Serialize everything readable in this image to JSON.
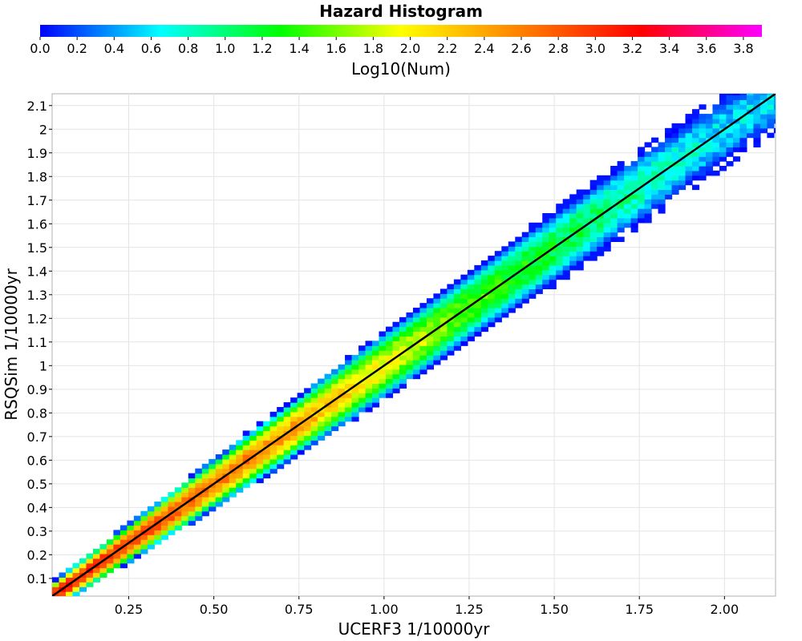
{
  "chart_data": {
    "type": "heatmap",
    "title": "Hazard Histogram",
    "xlabel": "UCERF3 1/10000yr",
    "ylabel": "RSQSim 1/10000yr",
    "xlim": [
      0.025,
      2.15
    ],
    "ylim": [
      0.025,
      2.15
    ],
    "x_ticks": [
      "0.25",
      "0.50",
      "0.75",
      "1.00",
      "1.25",
      "1.50",
      "1.75",
      "2.00"
    ],
    "y_ticks": [
      "0.1",
      "0.2",
      "0.3",
      "0.4",
      "0.5",
      "0.6",
      "0.7",
      "0.8",
      "0.9",
      "1",
      "1.1",
      "1.2",
      "1.3",
      "1.4",
      "1.5",
      "1.6",
      "1.7",
      "1.8",
      "1.9",
      "2",
      "2.1"
    ],
    "grid": true,
    "colorbar": {
      "label": "Log10(Num)",
      "range": [
        0.0,
        3.9
      ],
      "ticks": [
        "0.0",
        "0.2",
        "0.4",
        "0.6",
        "0.8",
        "1.0",
        "1.2",
        "1.4",
        "1.6",
        "1.8",
        "2.0",
        "2.2",
        "2.4",
        "2.6",
        "2.8",
        "3.0",
        "3.2",
        "3.4",
        "3.6",
        "3.8"
      ],
      "colors": [
        "#0000ff",
        "#00ffff",
        "#00ff00",
        "#ffff00",
        "#ff8000",
        "#ff0000",
        "#ff00ff"
      ],
      "placement": "top"
    },
    "bin_width": 0.02,
    "reference_line": {
      "from": [
        0.025,
        0.025
      ],
      "to": [
        2.15,
        2.15
      ],
      "color": "#000000"
    },
    "density_ridge": [
      {
        "x": 0.05,
        "log10_num": 3.2
      },
      {
        "x": 0.25,
        "log10_num": 3.0
      },
      {
        "x": 0.5,
        "log10_num": 2.7
      },
      {
        "x": 0.75,
        "log10_num": 2.4
      },
      {
        "x": 1.0,
        "log10_num": 2.0
      },
      {
        "x": 1.25,
        "log10_num": 1.5
      },
      {
        "x": 1.5,
        "log10_num": 1.2
      },
      {
        "x": 1.75,
        "log10_num": 0.9
      },
      {
        "x": 2.0,
        "log10_num": 0.6
      }
    ]
  }
}
